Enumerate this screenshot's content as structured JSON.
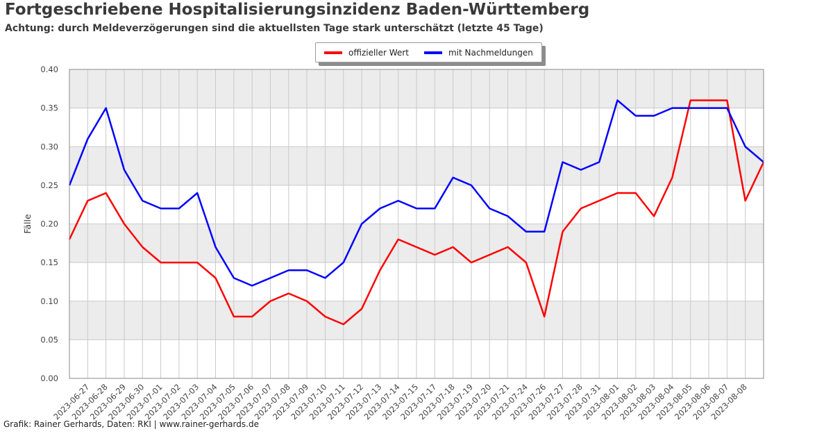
{
  "page": {
    "title": "Fortgeschriebene Hospitalisierungsinzidenz Baden-Württemberg",
    "subtitle": "Achtung: durch Meldeverzögerungen sind die aktuellsten Tage stark unterschätzt (letzte 45 Tage)",
    "footer": "Grafik: Rainer Gerhards, Daten: RKI | www.rainer-gerhards.de"
  },
  "legend": {
    "items": [
      {
        "label": "offizieller Wert",
        "color": "#ff0000"
      },
      {
        "label": "mit Nachmeldungen",
        "color": "#0000ff"
      }
    ]
  },
  "chart_data": {
    "type": "line",
    "title": "Fortgeschriebene Hospitalisierungsinzidenz Baden-Württemberg",
    "xlabel": "",
    "ylabel": "Fälle",
    "ylim": [
      0.0,
      0.4
    ],
    "ytick_labels": [
      "0.00",
      "0.05",
      "0.10",
      "0.15",
      "0.20",
      "0.25",
      "0.30",
      "0.35",
      "0.40"
    ],
    "grid": true,
    "legend_position": "top center",
    "grid_color": "#c9c9c9",
    "band_color": "#ececec",
    "spine_color": "#8a8a8a",
    "tick_label_color": "#444444",
    "x_labels": [
      "",
      "2023-06-27",
      "2023-06-28",
      "2023-06-29",
      "2023-06-30",
      "2023-07-01",
      "2023-07-02",
      "2023-07-03",
      "2023-07-04",
      "2023-07-05",
      "2023-07-06",
      "2023-07-07",
      "2023-07-08",
      "2023-07-09",
      "2023-07-10",
      "2023-07-11",
      "2023-07-12",
      "2023-07-13",
      "2023-07-14",
      "2023-07-15",
      "2023-07-17",
      "2023-07-18",
      "2023-07-19",
      "2023-07-20",
      "2023-07-21",
      "2023-07-24",
      "2023-07-26",
      "2023-07-27",
      "2023-07-28",
      "2023-07-31",
      "2023-08-01",
      "2023-08-02",
      "2023-08-03",
      "2023-08-04",
      "2023-08-05",
      "2023-08-06",
      "2023-08-07",
      "2023-08-08",
      ""
    ],
    "series": [
      {
        "name": "offizieller Wert",
        "color": "#ff0000",
        "values": [
          0.18,
          0.23,
          0.24,
          0.2,
          0.17,
          0.15,
          0.15,
          0.15,
          0.13,
          0.08,
          0.08,
          0.1,
          0.11,
          0.1,
          0.08,
          0.07,
          0.09,
          0.14,
          0.18,
          0.17,
          0.16,
          0.17,
          0.15,
          0.16,
          0.17,
          0.15,
          0.08,
          0.19,
          0.22,
          0.23,
          0.24,
          0.24,
          0.21,
          0.26,
          0.36,
          0.36,
          0.36,
          0.23,
          0.28
        ]
      },
      {
        "name": "mit Nachmeldungen",
        "color": "#0000ff",
        "values": [
          0.25,
          0.31,
          0.35,
          0.27,
          0.23,
          0.22,
          0.22,
          0.24,
          0.17,
          0.13,
          0.12,
          0.13,
          0.14,
          0.14,
          0.13,
          0.15,
          0.2,
          0.22,
          0.23,
          0.22,
          0.22,
          0.26,
          0.25,
          0.22,
          0.21,
          0.19,
          0.19,
          0.28,
          0.27,
          0.28,
          0.36,
          0.34,
          0.34,
          0.35,
          0.35,
          0.35,
          0.35,
          0.3,
          0.28
        ]
      }
    ]
  }
}
